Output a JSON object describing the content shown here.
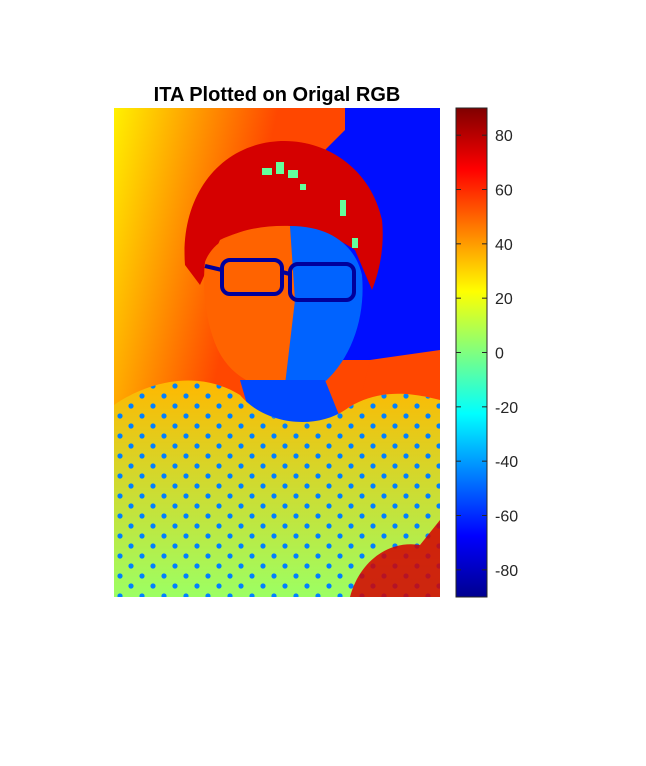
{
  "chart_data": {
    "type": "heatmap",
    "title": "ITA Plotted on Origal RGB",
    "colormap": "jet",
    "colorbar": {
      "location": "right",
      "clim": [
        -90,
        90
      ],
      "ticks": [
        80,
        60,
        40,
        20,
        0,
        -20,
        -40,
        -60,
        -80
      ],
      "tick_labels": [
        "80",
        "60",
        "40",
        "20",
        "0",
        "-20",
        "-40",
        "-60",
        "-80"
      ]
    },
    "axes_visible": false,
    "regions": [
      {
        "name": "background-left",
        "value": 25
      },
      {
        "name": "background-upper-middle",
        "value": 55
      },
      {
        "name": "background-right",
        "value": -65
      },
      {
        "name": "background-lower-right",
        "value": 55
      },
      {
        "name": "hair",
        "value": 75
      },
      {
        "name": "face-lit-side",
        "value": 50
      },
      {
        "name": "face-shadow-side",
        "value": -50
      },
      {
        "name": "glasses",
        "value": -85
      },
      {
        "name": "neck",
        "value": -55
      },
      {
        "name": "shirt-upper",
        "value": 35
      },
      {
        "name": "shirt-lower",
        "value": 5
      },
      {
        "name": "shirt-dots",
        "value": -45
      },
      {
        "name": "noise-patches",
        "value": -5
      }
    ]
  },
  "colors": {
    "background": "#ffffff",
    "axis": "#262626"
  }
}
